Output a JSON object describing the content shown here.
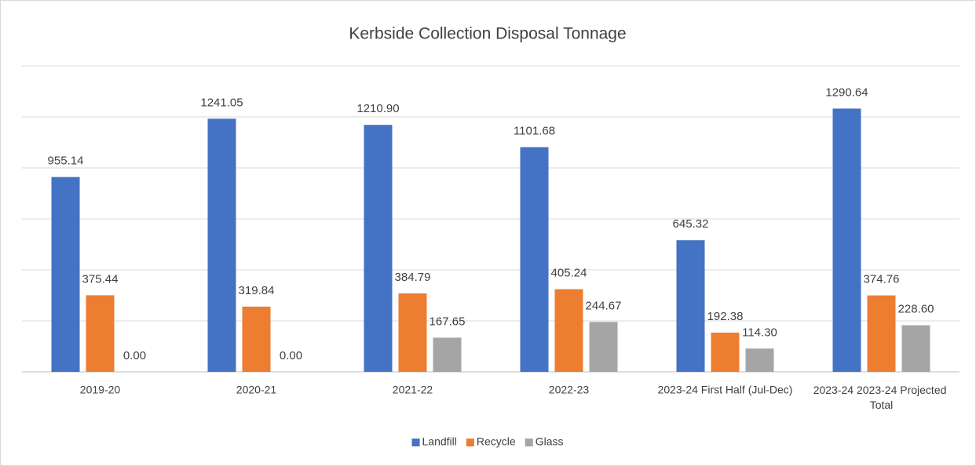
{
  "chart_data": {
    "type": "bar",
    "title": "Kerbside Collection Disposal Tonnage",
    "categories": [
      "2019-20",
      "2020-21",
      "2021-22",
      "2022-23",
      "2023-24 First Half (Jul-Dec)",
      "2023-24 2023-24 Projected Total"
    ],
    "series": [
      {
        "name": "Landfill",
        "color": "#4472c4",
        "values": [
          955.14,
          1241.05,
          1210.9,
          1101.68,
          645.32,
          1290.64
        ],
        "value_labels": [
          "955.14",
          "1241.05",
          "1210.90",
          "1101.68",
          "645.32",
          "1290.64"
        ]
      },
      {
        "name": "Recycle",
        "color": "#ed7d31",
        "values": [
          375.44,
          319.84,
          384.79,
          405.24,
          192.38,
          374.76
        ],
        "value_labels": [
          "375.44",
          "319.84",
          "384.79",
          "405.24",
          "192.38",
          "374.76"
        ]
      },
      {
        "name": "Glass",
        "color": "#a5a5a5",
        "values": [
          0,
          0,
          167.65,
          244.67,
          114.3,
          228.6
        ],
        "value_labels": [
          "0.00",
          "0.00",
          "167.65",
          "244.67",
          "114.30",
          "228.60"
        ]
      }
    ],
    "ylim": [
      0,
      1500
    ],
    "yticks": [
      0,
      250,
      500,
      750,
      1000,
      1250,
      1500
    ],
    "grid": true,
    "legend": "bottom"
  }
}
